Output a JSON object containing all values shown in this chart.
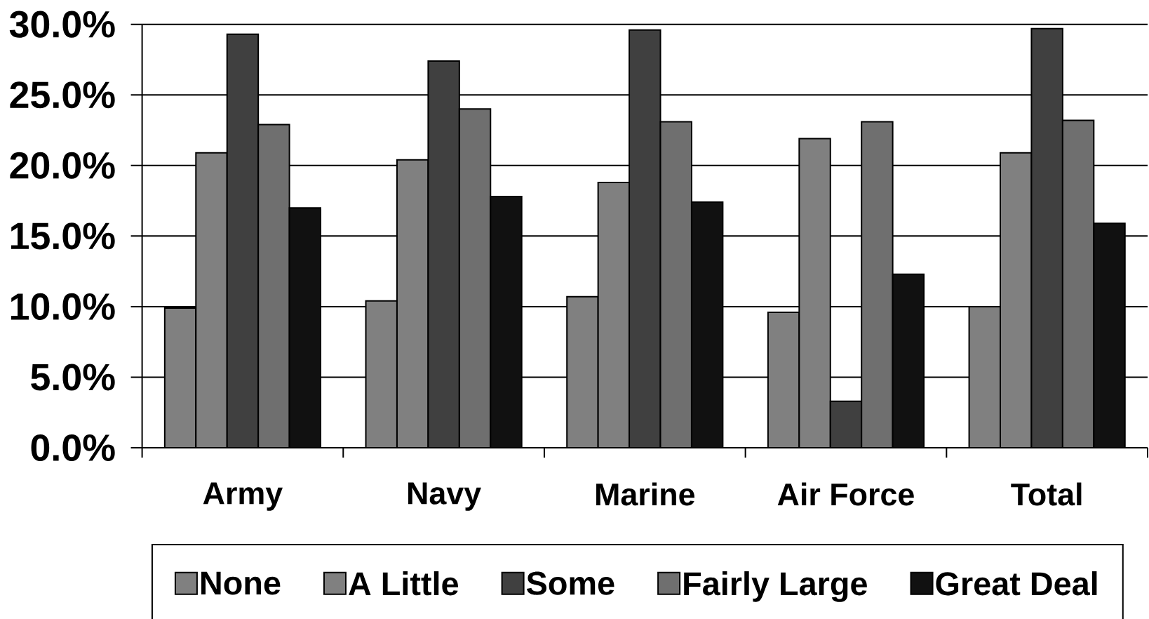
{
  "chart_data": {
    "type": "bar",
    "categories": [
      "Army",
      "Navy",
      "Marine",
      "Air Force",
      "Total"
    ],
    "series": [
      {
        "name": "None",
        "color": "#808080",
        "values": [
          9.9,
          10.4,
          10.7,
          9.6,
          10.0
        ]
      },
      {
        "name": "A Little",
        "color": "#808080",
        "values": [
          20.9,
          20.4,
          18.8,
          21.9,
          20.9
        ]
      },
      {
        "name": "Some",
        "color": "#404040",
        "values": [
          29.3,
          27.4,
          29.6,
          3.3,
          29.7
        ]
      },
      {
        "name": "Fairly Large",
        "color": "#6f6f6f",
        "values": [
          22.9,
          24.0,
          23.1,
          23.1,
          23.2
        ]
      },
      {
        "name": "Great Deal",
        "color": "#111111",
        "values": [
          17.0,
          17.8,
          17.4,
          12.3,
          15.9
        ]
      }
    ],
    "ylim": [
      0,
      30
    ],
    "yticks": [
      {
        "value": 0,
        "label": "0.0%"
      },
      {
        "value": 5,
        "label": "5.0%"
      },
      {
        "value": 10,
        "label": "10.0%"
      },
      {
        "value": 15,
        "label": "15.0%"
      },
      {
        "value": 20,
        "label": "20.0%"
      },
      {
        "value": 25,
        "label": "25.0%"
      },
      {
        "value": 30,
        "label": "30.0%"
      }
    ],
    "grid": "y",
    "legend": "bottom"
  }
}
